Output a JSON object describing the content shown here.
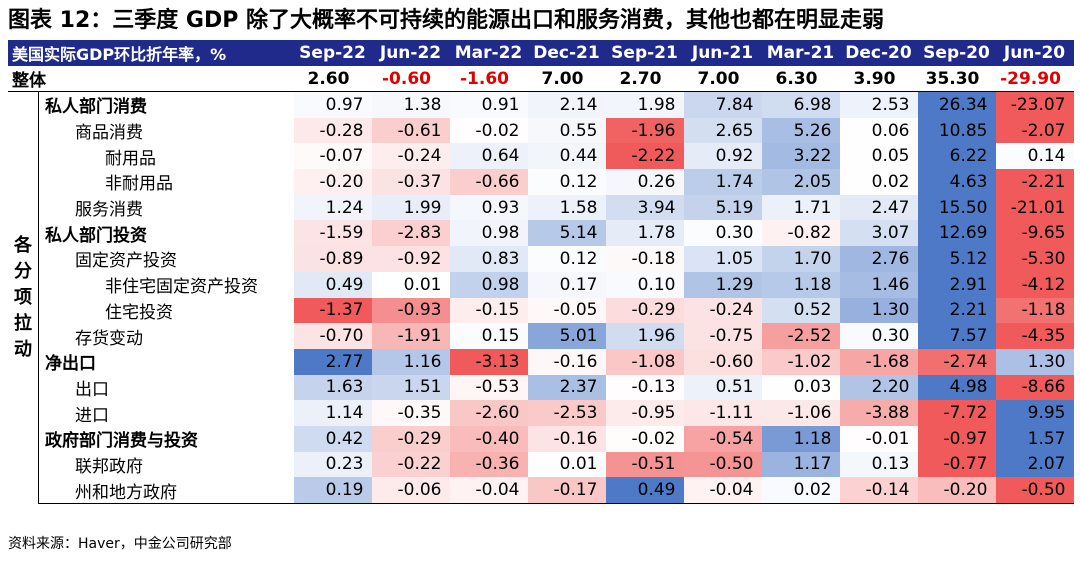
{
  "title": "图表 12：三季度 GDP 除了大概率不可持续的能源出口和服务消费，其他也都在明显走弱",
  "header_label": "美国实际GDP环比折年率，%",
  "columns": [
    "Sep-22",
    "Jun-22",
    "Mar-22",
    "Dec-21",
    "Sep-21",
    "Jun-21",
    "Mar-21",
    "Dec-20",
    "Sep-20",
    "Jun-20"
  ],
  "total": {
    "label": "整体",
    "values": [
      "2.60",
      "-0.60",
      "-1.60",
      "7.00",
      "2.70",
      "7.00",
      "6.30",
      "3.90",
      "35.30",
      "-29.90"
    ]
  },
  "side_label": "各分项拉动",
  "rows": [
    {
      "label": "私人部门消费",
      "level": 0,
      "values": [
        "0.97",
        "1.38",
        "0.91",
        "2.14",
        "1.98",
        "7.84",
        "6.98",
        "2.53",
        "26.34",
        "-23.07"
      ]
    },
    {
      "label": "商品消费",
      "level": 1,
      "values": [
        "-0.28",
        "-0.61",
        "-0.02",
        "0.55",
        "-1.96",
        "2.65",
        "5.26",
        "0.06",
        "10.85",
        "-2.07"
      ]
    },
    {
      "label": "耐用品",
      "level": 2,
      "values": [
        "-0.07",
        "-0.24",
        "0.64",
        "0.44",
        "-2.22",
        "0.92",
        "3.22",
        "0.05",
        "6.22",
        "0.14"
      ]
    },
    {
      "label": "非耐用品",
      "level": 2,
      "values": [
        "-0.20",
        "-0.37",
        "-0.66",
        "0.12",
        "0.26",
        "1.74",
        "2.05",
        "0.02",
        "4.63",
        "-2.21"
      ]
    },
    {
      "label": "服务消费",
      "level": 1,
      "values": [
        "1.24",
        "1.99",
        "0.93",
        "1.58",
        "3.94",
        "5.19",
        "1.71",
        "2.47",
        "15.50",
        "-21.01"
      ]
    },
    {
      "label": "私人部门投资",
      "level": 0,
      "values": [
        "-1.59",
        "-2.83",
        "0.98",
        "5.14",
        "1.78",
        "0.30",
        "-0.82",
        "3.07",
        "12.69",
        "-9.65"
      ]
    },
    {
      "label": "固定资产投资",
      "level": 1,
      "values": [
        "-0.89",
        "-0.92",
        "0.83",
        "0.12",
        "-0.18",
        "1.05",
        "1.70",
        "2.76",
        "5.12",
        "-5.30"
      ]
    },
    {
      "label": "非住宅固定资产投资",
      "level": 2,
      "values": [
        "0.49",
        "0.01",
        "0.98",
        "0.17",
        "0.10",
        "1.29",
        "1.18",
        "1.46",
        "2.91",
        "-4.12"
      ]
    },
    {
      "label": "住宅投资",
      "level": 2,
      "values": [
        "-1.37",
        "-0.93",
        "-0.15",
        "-0.05",
        "-0.29",
        "-0.24",
        "0.52",
        "1.30",
        "2.21",
        "-1.18"
      ]
    },
    {
      "label": "存货变动",
      "level": 1,
      "values": [
        "-0.70",
        "-1.91",
        "0.15",
        "5.01",
        "1.96",
        "-0.75",
        "-2.52",
        "0.30",
        "7.57",
        "-4.35"
      ]
    },
    {
      "label": "净出口",
      "level": 0,
      "values": [
        "2.77",
        "1.16",
        "-3.13",
        "-0.16",
        "-1.08",
        "-0.60",
        "-1.02",
        "-1.68",
        "-2.74",
        "1.30"
      ]
    },
    {
      "label": "出口",
      "level": 1,
      "values": [
        "1.63",
        "1.51",
        "-0.53",
        "2.37",
        "-0.13",
        "0.51",
        "0.03",
        "2.20",
        "4.98",
        "-8.66"
      ]
    },
    {
      "label": "进口",
      "level": 1,
      "values": [
        "1.14",
        "-0.35",
        "-2.60",
        "-2.53",
        "-0.95",
        "-1.11",
        "-1.06",
        "-3.88",
        "-7.72",
        "9.95"
      ]
    },
    {
      "label": "政府部门消费与投资",
      "level": 0,
      "values": [
        "0.42",
        "-0.29",
        "-0.40",
        "-0.16",
        "-0.02",
        "-0.54",
        "1.18",
        "-0.01",
        "-0.97",
        "1.57"
      ]
    },
    {
      "label": "联邦政府",
      "level": 1,
      "values": [
        "0.23",
        "-0.22",
        "-0.36",
        "0.01",
        "-0.51",
        "-0.50",
        "1.17",
        "0.13",
        "-0.77",
        "2.07"
      ]
    },
    {
      "label": "州和地方政府",
      "level": 1,
      "values": [
        "0.19",
        "-0.06",
        "-0.04",
        "-0.17",
        "0.49",
        "-0.04",
        "0.02",
        "-0.14",
        "-0.20",
        "-0.50"
      ]
    }
  ],
  "source": "资料来源：Haver，中金公司研究部",
  "colors": {
    "header_bg": "#1f2a8a",
    "positive": "#4472c4",
    "negative": "#f05a5a",
    "total_negative": "#e00000"
  },
  "chart_data": {
    "type": "table",
    "title": "图表 12：三季度 GDP 除了大概率不可持续的能源出口和服务消费，其他也都在明显走弱",
    "categories": [
      "Sep-22",
      "Jun-22",
      "Mar-22",
      "Dec-21",
      "Sep-21",
      "Jun-21",
      "Mar-21",
      "Dec-20",
      "Sep-20",
      "Jun-20"
    ],
    "note": "heatmap table; blue=positive, red=negative, shaded per row"
  }
}
